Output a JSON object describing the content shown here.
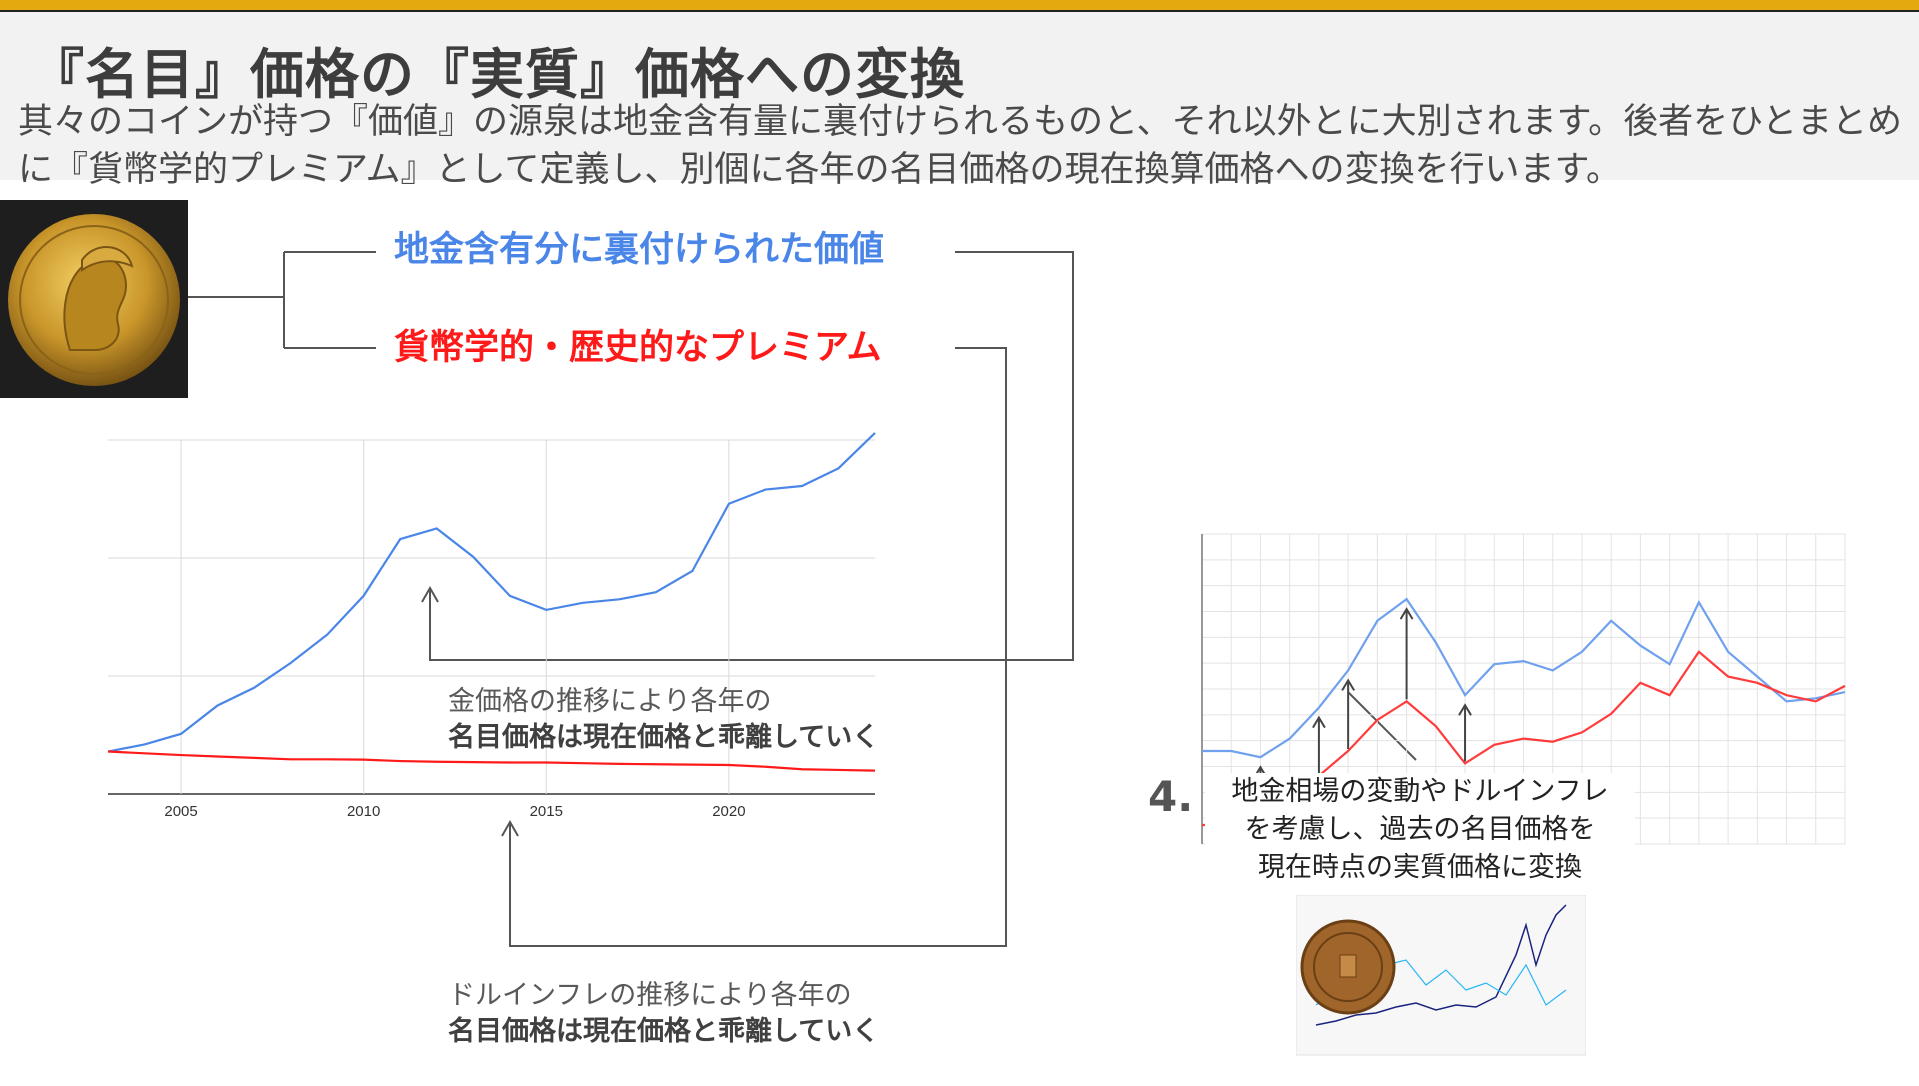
{
  "slide": {
    "title": "『名目』価格の『実質』価格への変換",
    "subtitle": "其々のコインが持つ『価値』の源泉は地金含有量に裏付けられるものと、それ以外とに大別されます。後者をひとまとめに『貨幣学的プレミアム』として定義し、別個に各年の名目価格の現在換算価格への変換を行います。"
  },
  "labels": {
    "bullion_value": "地金含有分に裏付けられた価値",
    "numismatic_premium": "貨幣学的・歴史的なプレミアム"
  },
  "annotations": {
    "gold_line1": "金価格の推移により各年の",
    "gold_line2": "名目価格は現在価格と乖離していく",
    "inflation_line1": "ドルインフレの推移により各年の",
    "inflation_line2": "名目価格は現在価格と乖離していく"
  },
  "step4": {
    "number": "4.",
    "line1": "地金相場の変動やドルインフレ",
    "line2": "を考慮し、過去の名目価格を",
    "line3": "現在時点の実質価格に変換"
  },
  "colors": {
    "accent_bar": "#e3a90e",
    "blue": "#4a86e8",
    "red": "#ff1a1a"
  },
  "chart_data": [
    {
      "type": "line",
      "x": [
        2003,
        2004,
        2005,
        2006,
        2007,
        2008,
        2009,
        2010,
        2011,
        2012,
        2013,
        2014,
        2015,
        2016,
        2017,
        2018,
        2019,
        2020,
        2021,
        2022,
        2023,
        2024
      ],
      "xticks": [
        "2005",
        "2010",
        "2015",
        "2020"
      ],
      "xlim": [
        2003,
        2024
      ],
      "ylim": [
        0,
        100
      ],
      "grid": true,
      "series": [
        {
          "color": "#4a86e8",
          "values": [
            12,
            14,
            17,
            25,
            30,
            37,
            45,
            56,
            72,
            75,
            67,
            56,
            52,
            54,
            55,
            57,
            63,
            82,
            86,
            87,
            92,
            102
          ]
        },
        {
          "color": "#ff1a1a",
          "values": [
            12,
            11.5,
            11,
            10.6,
            10.2,
            9.8,
            9.8,
            9.7,
            9.3,
            9.1,
            9.0,
            8.9,
            8.9,
            8.7,
            8.5,
            8.4,
            8.3,
            8.2,
            7.7,
            7.0,
            6.8,
            6.6
          ]
        }
      ]
    },
    {
      "type": "line",
      "ylim": [
        0,
        100
      ],
      "grid": true,
      "series": [
        {
          "color": "#6fa1ef",
          "values": [
            30,
            30,
            28,
            34,
            44,
            56,
            72,
            79,
            65,
            48,
            58,
            59,
            56,
            62,
            72,
            64,
            58,
            78,
            62,
            54,
            46,
            47,
            49
          ]
        },
        {
          "color": "#ff3b3b",
          "values": [
            6,
            8,
            9,
            14,
            22,
            30,
            40,
            46,
            38,
            26,
            32,
            34,
            33,
            36,
            42,
            52,
            48,
            62,
            54,
            52,
            48,
            46,
            51
          ]
        }
      ]
    }
  ]
}
